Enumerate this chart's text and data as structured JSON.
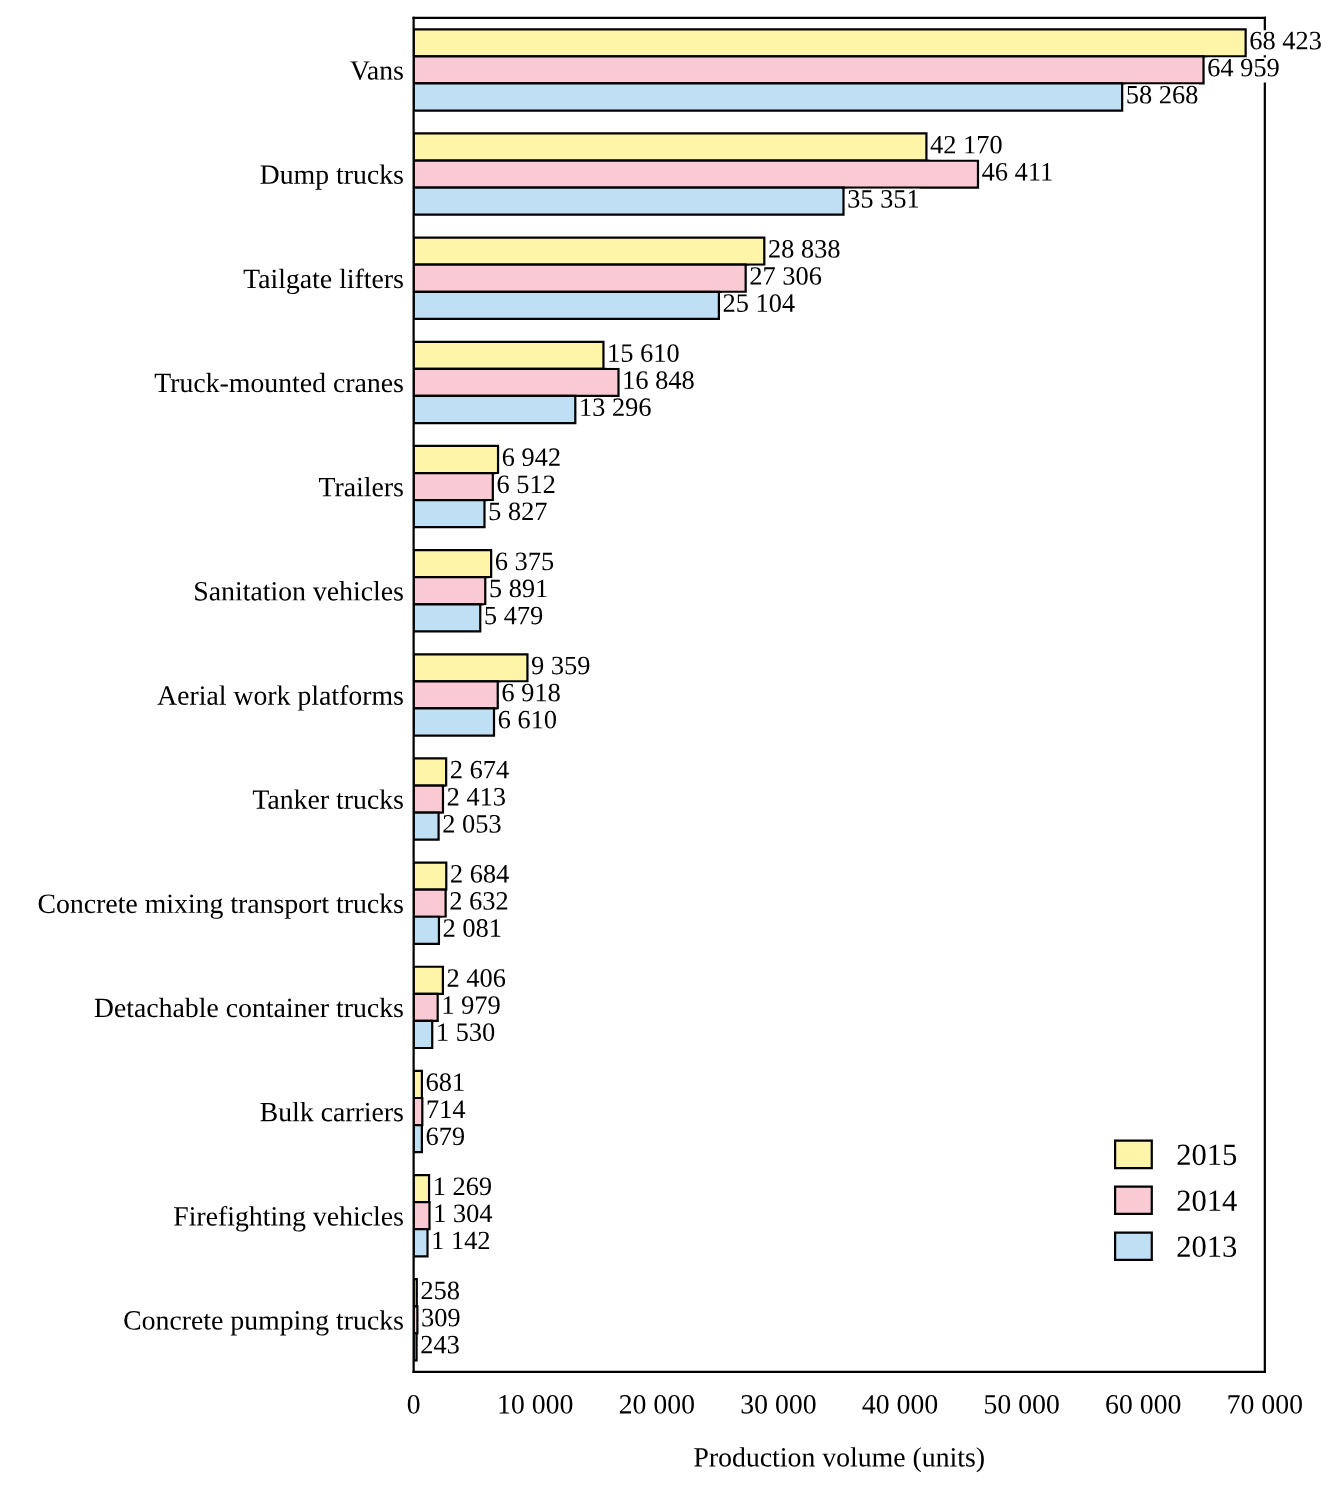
{
  "chart_data": {
    "type": "bar",
    "orientation": "horizontal",
    "xlabel": "Production volume (units)",
    "categories": [
      "Vans",
      "Dump trucks",
      "Tailgate lifters",
      "Truck-mounted cranes",
      "Trailers",
      "Sanitation vehicles",
      "Aerial work platforms",
      "Tanker trucks",
      "Concrete mixing transport trucks",
      "Detachable container trucks",
      "Bulk carriers",
      "Firefighting vehicles",
      "Concrete pumping trucks"
    ],
    "series": [
      {
        "name": "2015",
        "color": "#fff5a8",
        "values": [
          68423,
          42170,
          28838,
          15610,
          6942,
          6375,
          9359,
          2674,
          2684,
          2406,
          681,
          1269,
          258
        ],
        "value_labels": [
          "68 423",
          "42 170",
          "28 838",
          "15 610",
          "6 942",
          "6 375",
          "9 359",
          "2 674",
          "2 684",
          "2 406",
          "681",
          "1 269",
          "258"
        ]
      },
      {
        "name": "2014",
        "color": "#f9c9d4",
        "values": [
          64959,
          46411,
          27306,
          16848,
          6512,
          5891,
          6918,
          2413,
          2632,
          1979,
          714,
          1304,
          309
        ],
        "value_labels": [
          "64 959",
          "46 411",
          "27 306",
          "16 848",
          "6 512",
          "5 891",
          "6 918",
          "2 413",
          "2 632",
          "1 979",
          "714",
          "1 304",
          "309"
        ]
      },
      {
        "name": "2013",
        "color": "#bfe0f4",
        "values": [
          58268,
          35351,
          25104,
          13296,
          5827,
          5479,
          6610,
          2053,
          2081,
          1530,
          679,
          1142,
          243
        ],
        "value_labels": [
          "58 268",
          "35 351",
          "25 104",
          "13 296",
          "5 827",
          "5 479",
          "6 610",
          "2 053",
          "2 081",
          "1 530",
          "679",
          "1 142",
          "243"
        ]
      }
    ],
    "xlim": [
      0,
      70000
    ],
    "xticks": [
      0,
      {
        "value": 10000,
        "label": "10 000"
      },
      {
        "value": 20000,
        "label": "20 000"
      },
      {
        "value": 30000,
        "label": "30 000"
      },
      {
        "value": 40000,
        "label": "40 000"
      },
      {
        "value": 50000,
        "label": "50 000"
      },
      {
        "value": 60000,
        "label": "60 000"
      },
      {
        "value": 70000,
        "label": "70 000"
      }
    ],
    "grid": false,
    "legend": "bottom right"
  }
}
